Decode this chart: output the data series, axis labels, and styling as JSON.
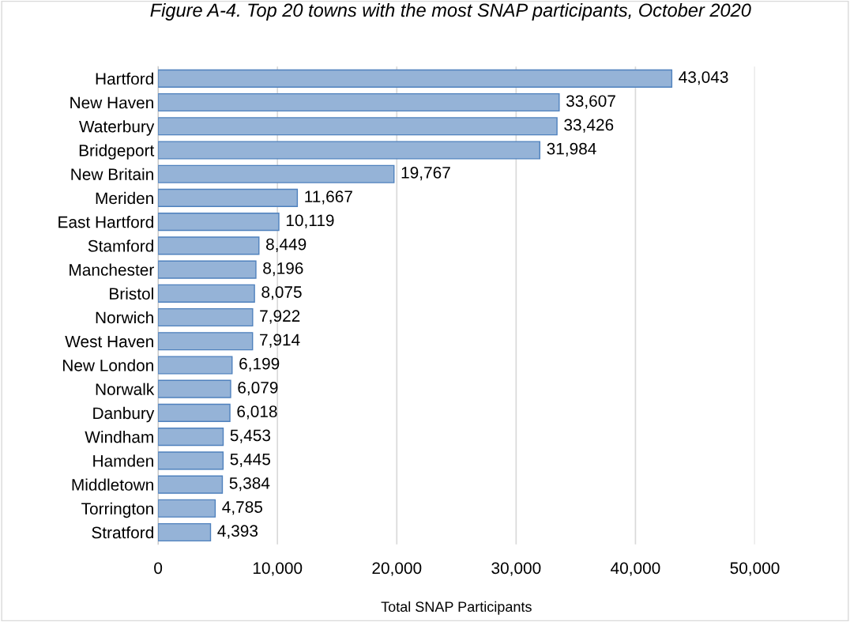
{
  "chart_data": {
    "type": "bar",
    "orientation": "horizontal",
    "title": "Figure A-4. Top 20 towns with the most SNAP participants, October 2020",
    "xlabel": "Total SNAP Participants",
    "categories": [
      "Hartford",
      "New Haven",
      "Waterbury",
      "Bridgeport",
      "New Britain",
      "Meriden",
      "East Hartford",
      "Stamford",
      "Manchester",
      "Bristol",
      "Norwich",
      "West Haven",
      "New London",
      "Norwalk",
      "Danbury",
      "Windham",
      "Hamden",
      "Middletown",
      "Torrington",
      "Stratford"
    ],
    "values": [
      43043,
      33607,
      33426,
      31984,
      19767,
      11667,
      10119,
      8449,
      8196,
      8075,
      7922,
      7914,
      6199,
      6079,
      6018,
      5453,
      5445,
      5384,
      4785,
      4393
    ],
    "value_labels": [
      "43,043",
      "33,607",
      "33,426",
      "31,984",
      "19,767",
      "11,667",
      "10,119",
      "8,449",
      "8,196",
      "8,075",
      "7,922",
      "7,914",
      "6,199",
      "6,079",
      "6,018",
      "5,453",
      "5,445",
      "5,384",
      "4,785",
      "4,393"
    ],
    "color": "#95b3d7",
    "xlim": [
      0,
      50000
    ],
    "xticks": [
      0,
      {
        "value": 10000,
        "label": "10,000"
      },
      {
        "value": 20000,
        "label": "20,000"
      },
      {
        "value": 30000,
        "label": "30,000"
      },
      {
        "value": 40000,
        "label": "40,000"
      },
      {
        "value": 50000,
        "label": "50,000"
      }
    ],
    "grid": "x"
  }
}
